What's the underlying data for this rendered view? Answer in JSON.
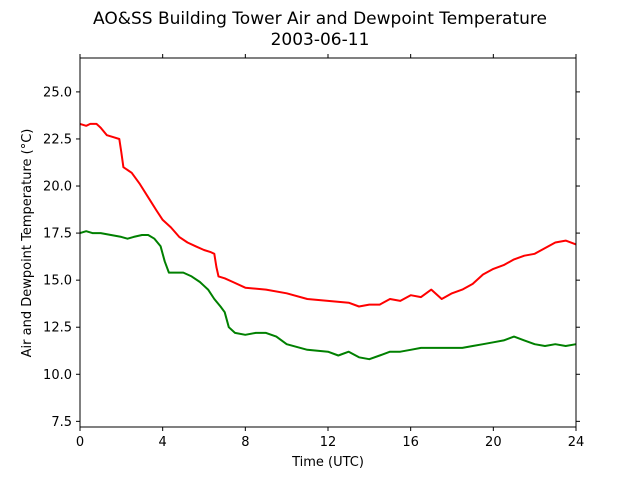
{
  "chart_data": {
    "type": "line",
    "title": "AO&SS Building Tower Air and Dewpoint Temperature",
    "subtitle": "2003-06-11",
    "xlabel": "Time (UTC)",
    "ylabel": "Air and Dewpoint Temperature (°C)",
    "xlim": [
      0,
      24
    ],
    "ylim": [
      7.2,
      26.8
    ],
    "xticks": [
      0,
      4,
      8,
      12,
      16,
      20,
      24
    ],
    "yticks": [
      7.5,
      10.0,
      12.5,
      15.0,
      17.5,
      20.0,
      22.5,
      25.0
    ],
    "grid": false,
    "legend": "none",
    "series": [
      {
        "color": "#ff0000",
        "x": [
          0,
          0.3,
          0.5,
          0.8,
          1.0,
          1.3,
          1.6,
          1.9,
          2.0,
          2.1,
          2.5,
          2.9,
          3.3,
          3.7,
          4.0,
          4.4,
          4.8,
          5.2,
          5.6,
          6.0,
          6.3,
          6.5,
          6.6,
          6.7,
          7.0,
          7.4,
          8.0,
          9.0,
          10.0,
          11.0,
          12.0,
          13.0,
          13.5,
          14.0,
          14.5,
          15.0,
          15.5,
          16.0,
          16.5,
          17.0,
          17.5,
          18.0,
          18.5,
          19.0,
          19.5,
          20.0,
          20.5,
          21.0,
          21.5,
          22.0,
          22.5,
          23.0,
          23.5,
          24.0
        ],
        "values": [
          23.3,
          23.2,
          23.3,
          23.3,
          23.1,
          22.7,
          22.6,
          22.5,
          21.8,
          21.0,
          20.7,
          20.1,
          19.4,
          18.7,
          18.2,
          17.8,
          17.3,
          17.0,
          16.8,
          16.6,
          16.5,
          16.4,
          15.7,
          15.2,
          15.1,
          14.9,
          14.6,
          14.5,
          14.3,
          14.0,
          13.9,
          13.8,
          13.6,
          13.7,
          13.7,
          14.0,
          13.9,
          14.2,
          14.1,
          14.5,
          14.0,
          14.3,
          14.5,
          14.8,
          15.3,
          15.6,
          15.8,
          16.1,
          16.3,
          16.4,
          16.7,
          17.0,
          17.1,
          16.9
        ]
      },
      {
        "color": "#008000",
        "x": [
          0,
          0.3,
          0.6,
          1.0,
          1.5,
          2.0,
          2.3,
          2.6,
          3.0,
          3.3,
          3.6,
          3.9,
          4.1,
          4.3,
          4.6,
          5.0,
          5.4,
          5.8,
          6.0,
          6.2,
          6.5,
          6.8,
          7.0,
          7.2,
          7.5,
          8.0,
          8.5,
          9.0,
          9.5,
          10.0,
          11.0,
          12.0,
          12.5,
          13.0,
          13.5,
          14.0,
          14.5,
          15.0,
          15.5,
          16.0,
          16.5,
          17.0,
          17.5,
          18.0,
          18.5,
          19.0,
          19.5,
          20.0,
          20.5,
          21.0,
          21.5,
          22.0,
          22.5,
          23.0,
          23.5,
          24.0
        ],
        "values": [
          17.5,
          17.6,
          17.5,
          17.5,
          17.4,
          17.3,
          17.2,
          17.3,
          17.4,
          17.4,
          17.2,
          16.8,
          16.0,
          15.4,
          15.4,
          15.4,
          15.2,
          14.9,
          14.7,
          14.5,
          14.0,
          13.6,
          13.3,
          12.5,
          12.2,
          12.1,
          12.2,
          12.2,
          12.0,
          11.6,
          11.3,
          11.2,
          11.0,
          11.2,
          10.9,
          10.8,
          11.0,
          11.2,
          11.2,
          11.3,
          11.4,
          11.4,
          11.4,
          11.4,
          11.4,
          11.5,
          11.6,
          11.7,
          11.8,
          12.0,
          11.8,
          11.6,
          11.5,
          11.6,
          11.5,
          11.6
        ]
      }
    ]
  }
}
